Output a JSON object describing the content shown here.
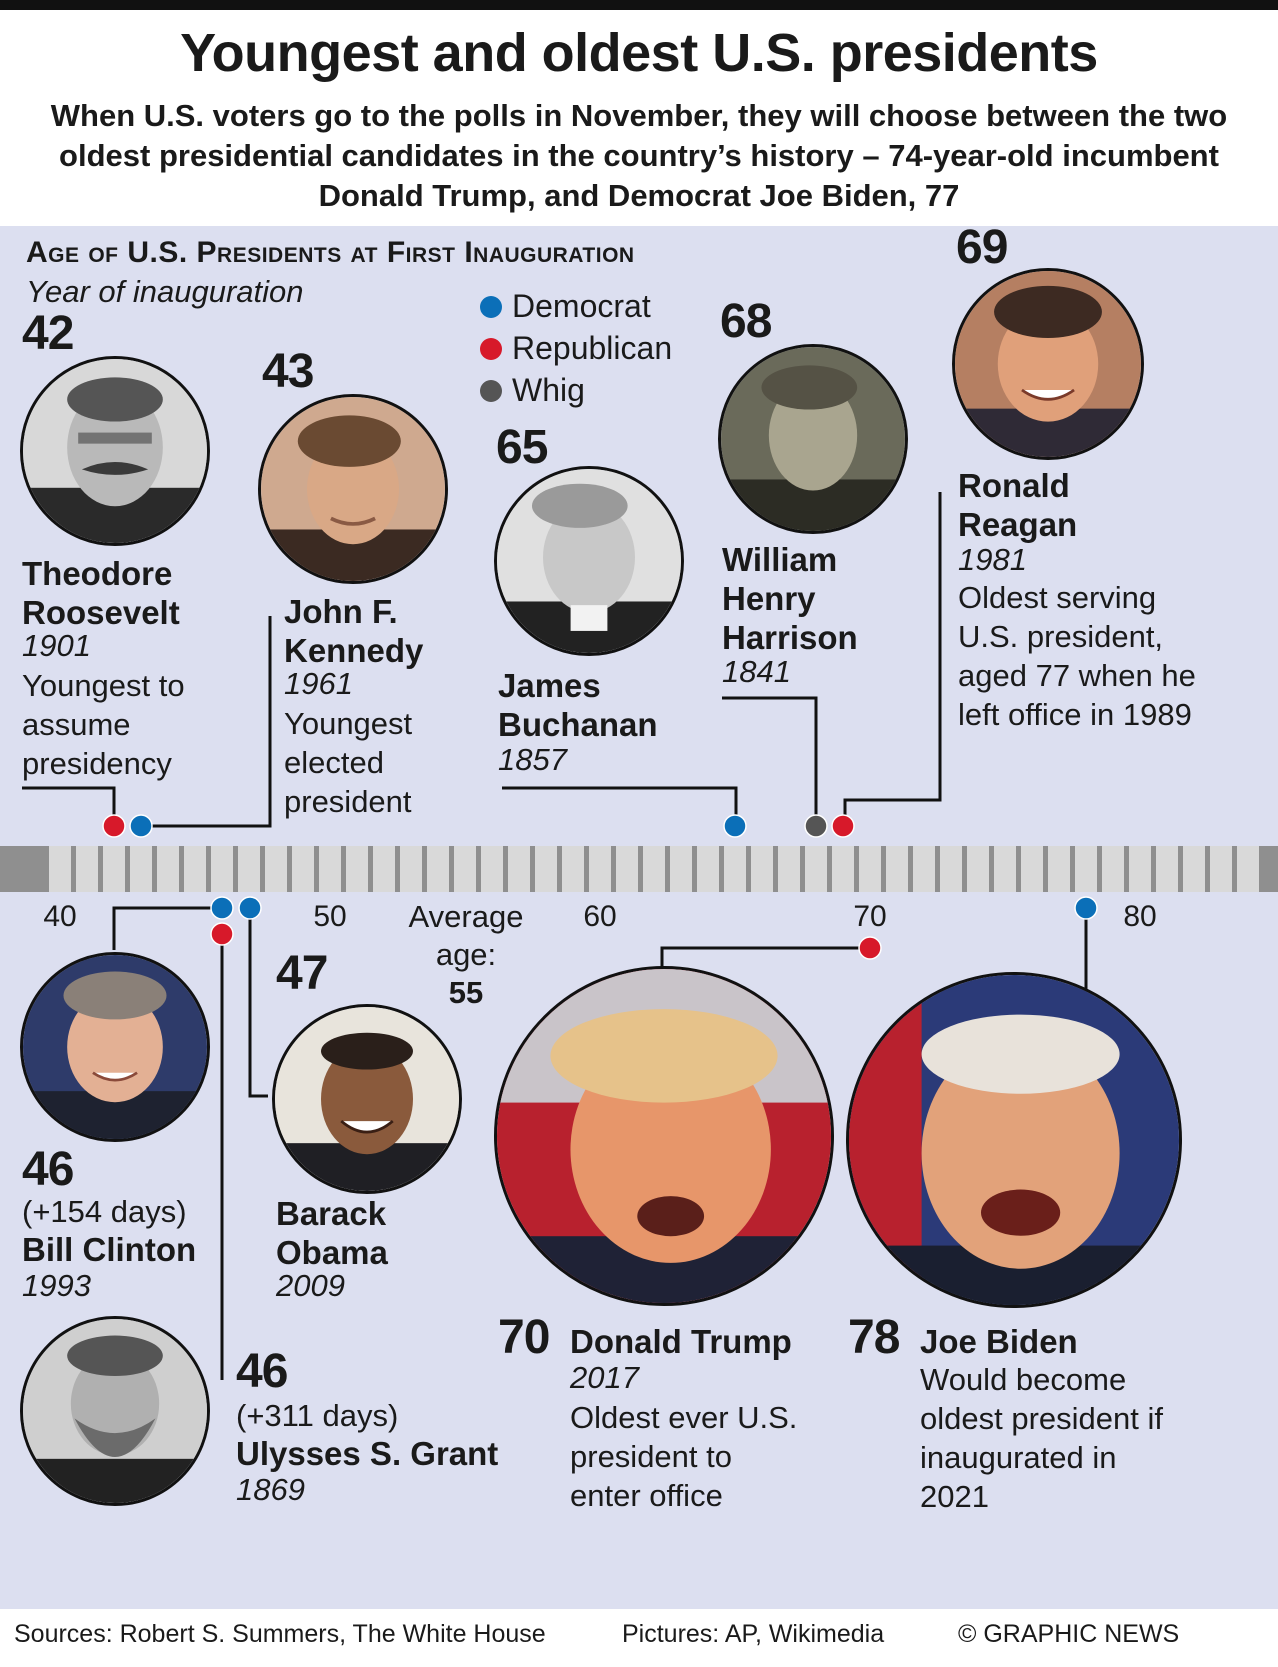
{
  "title": "Youngest and oldest U.S. presidents",
  "subtitle": "When U.S. voters go to the polls in November, they will choose between the two oldest presidential candidates in the country’s history – 74-year-old incumbent Donald Trump, and Democrat Joe Biden, 77",
  "chart_title": "Age of U.S. Presidents at First Inauguration",
  "year_note": "Year of inauguration",
  "legend": [
    {
      "label": "Democrat",
      "color": "#0b6fb8"
    },
    {
      "label": "Republican",
      "color": "#d7192a"
    },
    {
      "label": "Whig",
      "color": "#555555"
    }
  ],
  "average": {
    "label": "Average age:",
    "value": "55"
  },
  "chart_data": {
    "type": "scatter",
    "title": "Age of U.S. Presidents at First Inauguration",
    "xlabel": "",
    "ylabel": "",
    "xlim": [
      40,
      80
    ],
    "ticks": [
      40,
      50,
      60,
      70,
      80
    ],
    "average_age": 55,
    "series": [
      {
        "name": "Democrat",
        "color": "#0b6fb8",
        "points": [
          {
            "president": "John F. Kennedy",
            "age": 43,
            "year": 1961
          },
          {
            "president": "James Buchanan",
            "age": 65,
            "year": 1857
          },
          {
            "president": "Bill Clinton",
            "age": 46.42,
            "year": 1993
          },
          {
            "president": "Barack Obama",
            "age": 47,
            "year": 2009
          },
          {
            "president": "Joe Biden",
            "age": 78,
            "year": 2021
          }
        ]
      },
      {
        "name": "Republican",
        "color": "#d7192a",
        "points": [
          {
            "president": "Theodore Roosevelt",
            "age": 42,
            "year": 1901
          },
          {
            "president": "Ronald Reagan",
            "age": 69,
            "year": 1981
          },
          {
            "president": "Ulysses S. Grant",
            "age": 46.85,
            "year": 1869
          },
          {
            "president": "Donald Trump",
            "age": 70,
            "year": 2017
          }
        ]
      },
      {
        "name": "Whig",
        "color": "#555555",
        "points": [
          {
            "president": "William Henry Harrison",
            "age": 68,
            "year": 1841
          }
        ]
      }
    ]
  },
  "presidents": {
    "roosevelt": {
      "age": "42",
      "name": "Theodore Roosevelt",
      "year": "1901",
      "note": "Youngest to assume presidency"
    },
    "kennedy": {
      "age": "43",
      "name": "John F. Kennedy",
      "year": "1961",
      "note": "Youngest elected president"
    },
    "buchanan": {
      "age": "65",
      "name": "James Buchanan",
      "year": "1857"
    },
    "harrison": {
      "age": "68",
      "name": "William Henry Harrison",
      "year": "1841"
    },
    "reagan": {
      "age": "69",
      "name": "Ronald Reagan",
      "year": "1981",
      "note": "Oldest serving U.S. president, aged 77 when he left office in 1989"
    },
    "clinton": {
      "age": "46",
      "days": "(+154 days)",
      "name": "Bill Clinton",
      "year": "1993"
    },
    "obama": {
      "age": "47",
      "name": "Barack Obama",
      "year": "2009"
    },
    "grant": {
      "age": "46",
      "days": "(+311 days)",
      "name": "Ulysses S. Grant",
      "year": "1869"
    },
    "trump": {
      "age": "70",
      "name": "Donald Trump",
      "year": "2017",
      "note": "Oldest ever U.S. president to enter office"
    },
    "biden": {
      "age": "78",
      "name": "Joe Biden",
      "note": "Would become oldest president if inaugurated in 2021"
    }
  },
  "footer": {
    "sources": "Sources: Robert S. Summers, The White House",
    "pictures": "Pictures: AP, Wikimedia",
    "credit": "© GRAPHIC NEWS"
  }
}
